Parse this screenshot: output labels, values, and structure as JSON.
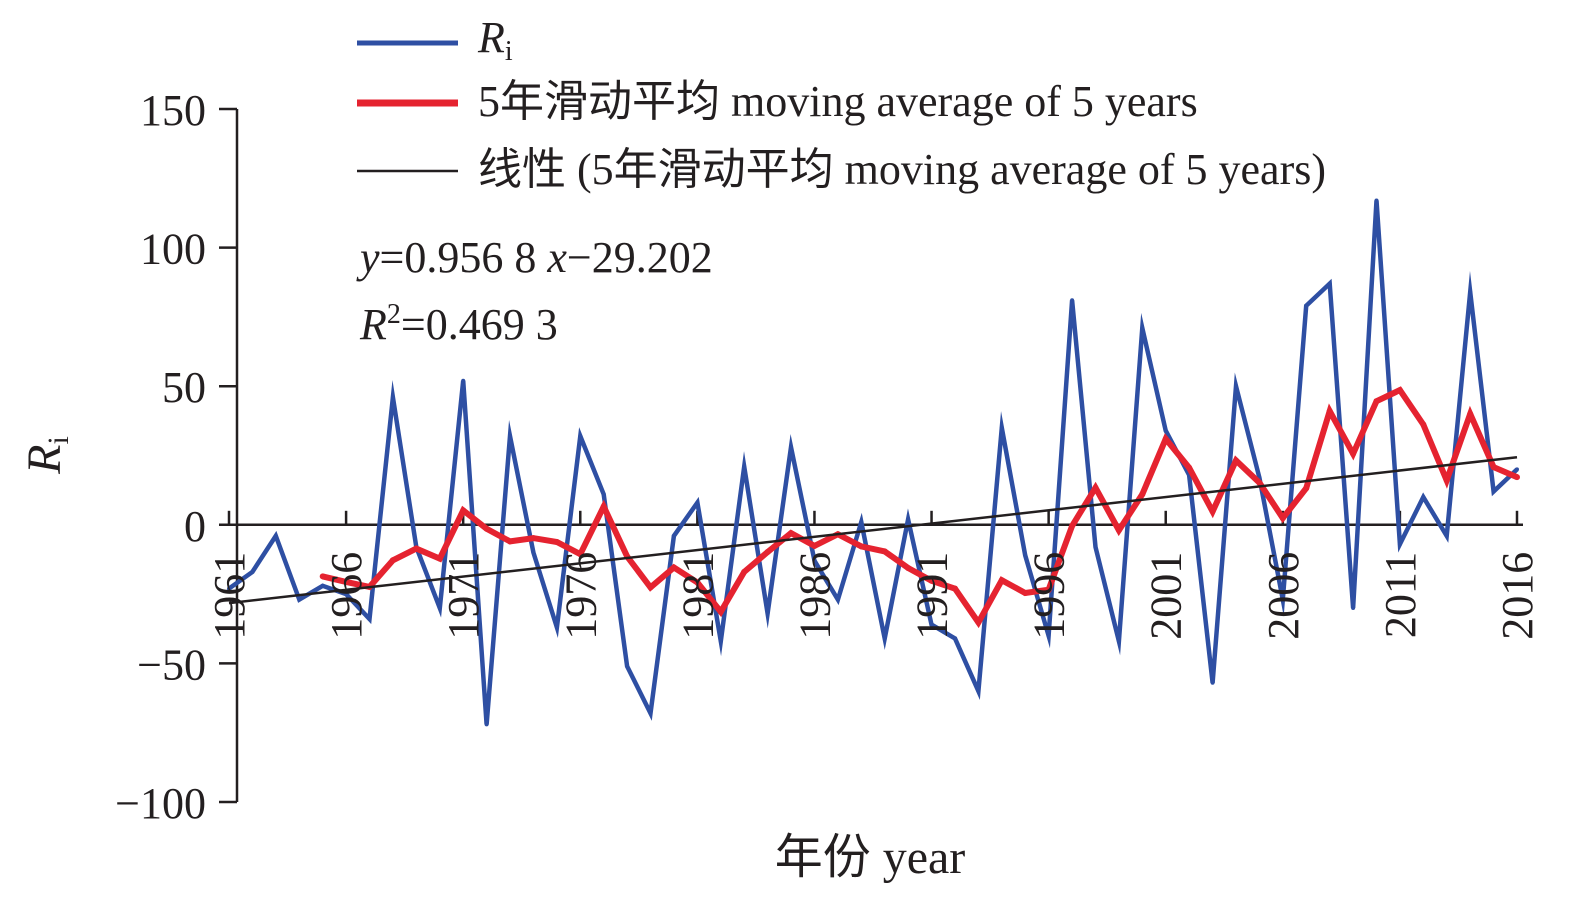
{
  "chart_data": {
    "type": "line",
    "xlabel": "年份 year",
    "ylabel": "R",
    "ylabel_sub": "i",
    "ylim": [
      -100,
      150
    ],
    "yticks": [
      150,
      100,
      50,
      0,
      -50,
      -100
    ],
    "ytick_labels": [
      "150",
      "100",
      "50",
      "0",
      "−50",
      "−100"
    ],
    "xlim": [
      1961,
      2016
    ],
    "xticks": [
      1961,
      1966,
      1971,
      1976,
      1981,
      1986,
      1991,
      1996,
      2001,
      2006,
      2011,
      2016
    ],
    "xtick_labels": [
      "1961",
      "1966",
      "1971",
      "1976",
      "1981",
      "1986",
      "1991",
      "1996",
      "2001",
      "2006",
      "2011",
      "2016"
    ],
    "grid": false,
    "legend_position": "top",
    "legend": {
      "ri_main": "R",
      "ri_sub": "i",
      "ma_label": "5年滑动平均 moving average of 5 years",
      "trend_label": "线性 (5年滑动平均 moving average of 5 years)"
    },
    "annotation": {
      "equation": {
        "y_var": "y",
        "equals_coeff": "=0.956 8 ",
        "x_var": "x",
        "rest": "−29.202"
      },
      "r2": {
        "r_var": "R",
        "sup": "2",
        "rest": "=0.469 3"
      }
    },
    "series": [
      {
        "name": "Ri",
        "color": "#2e4fa3",
        "x": [
          1961,
          1962,
          1963,
          1964,
          1965,
          1966,
          1967,
          1968,
          1969,
          1970,
          1971,
          1972,
          1973,
          1974,
          1975,
          1976,
          1977,
          1978,
          1979,
          1980,
          1981,
          1982,
          1983,
          1984,
          1985,
          1986,
          1987,
          1988,
          1989,
          1990,
          1991,
          1992,
          1993,
          1994,
          1995,
          1996,
          1997,
          1998,
          1999,
          2000,
          2001,
          2002,
          2003,
          2004,
          2005,
          2006,
          2007,
          2008,
          2009,
          2010,
          2011,
          2012,
          2013,
          2014,
          2015,
          2016
        ],
        "values": [
          -23,
          -17,
          -4,
          -27,
          -22,
          -25,
          -34,
          46,
          -8,
          -30,
          52,
          -72,
          32,
          -10,
          -37,
          32,
          11,
          -51,
          -68,
          -4,
          8,
          -42,
          21,
          -32,
          28,
          -13,
          -27,
          1,
          -41,
          2,
          -36,
          -41,
          -60,
          35,
          -11,
          -40,
          81,
          -8,
          -42,
          71,
          34,
          18,
          -57,
          50,
          17,
          -27,
          79,
          87,
          -30,
          117,
          -7,
          10,
          -4,
          84,
          12,
          20
        ],
        "width": 4.5
      },
      {
        "name": "5年滑动平均 moving average of 5 years",
        "color": "#e52330",
        "x": [
          1965,
          1966,
          1967,
          1968,
          1969,
          1970,
          1971,
          1972,
          1973,
          1974,
          1975,
          1976,
          1977,
          1978,
          1979,
          1980,
          1981,
          1982,
          1983,
          1984,
          1985,
          1986,
          1987,
          1988,
          1989,
          1990,
          1991,
          1992,
          1993,
          1994,
          1995,
          1996,
          1997,
          1998,
          1999,
          2000,
          2001,
          2002,
          2003,
          2004,
          2005,
          2006,
          2007,
          2008,
          2009,
          2010,
          2011,
          2012,
          2013,
          2014,
          2015,
          2016
        ],
        "values": [
          -18.6,
          -20.6,
          -22.4,
          -12.8,
          -8.6,
          -12.2,
          5.2,
          -1.4,
          -6,
          -4.8,
          -6.2,
          -10.6,
          6.6,
          -11.4,
          -22.6,
          -15.4,
          -20.8,
          -31.4,
          -17,
          -9.8,
          -3,
          -7.6,
          -3.4,
          -7.8,
          -9.6,
          -15.6,
          -20.2,
          -23,
          -35.2,
          -20,
          -24.6,
          -23.4,
          -0.4,
          13.4,
          -2,
          11,
          31,
          20.6,
          4.8,
          23.2,
          15.2,
          2.4,
          13.2,
          41,
          25.6,
          44.6,
          48.6,
          36.2,
          16,
          40,
          20.8,
          17.2
        ],
        "width": 6
      },
      {
        "name": "线性 (5年滑动平均 moving average of 5 years)",
        "color": "#231f20",
        "type": "trend",
        "slope": 0.9568,
        "intercept": -29.202,
        "x_start": 1961,
        "x_end": 2016,
        "width": 2.5
      }
    ]
  }
}
